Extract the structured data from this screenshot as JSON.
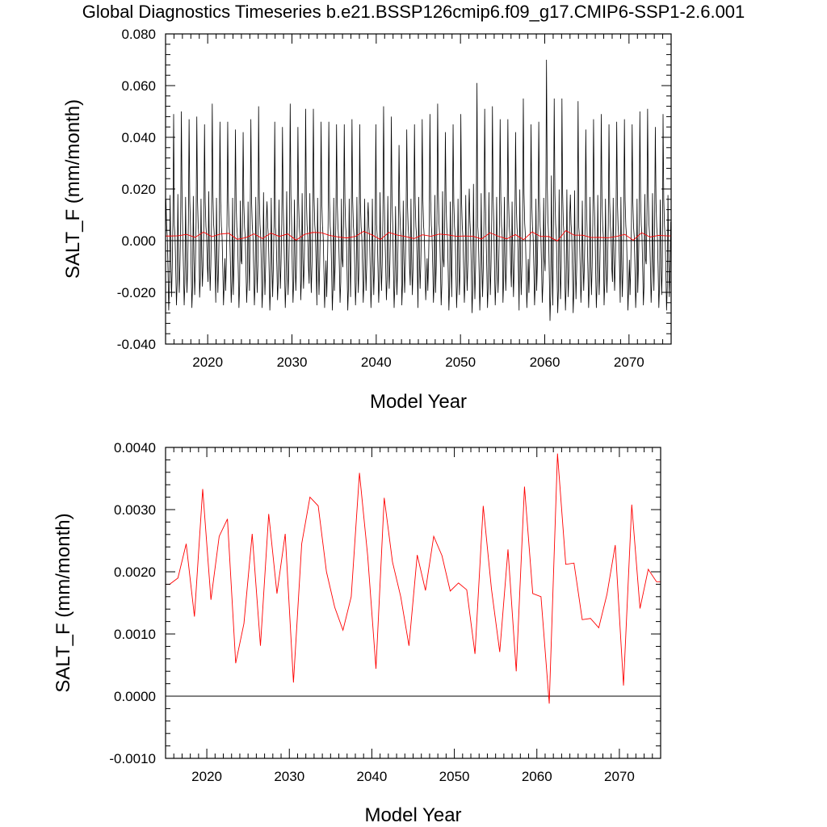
{
  "title": "Global Diagnostics Timeseries b.e21.BSSP126cmip6.f09_g17.CMIP6-SSP1-2.6.001",
  "chart_data": [
    {
      "type": "line",
      "xlabel": "Model Year",
      "ylabel": "SALT_F (mm/month)",
      "xlim": [
        2015,
        2075
      ],
      "ylim": [
        -0.04,
        0.08
      ],
      "x_ticks": [
        2020,
        2030,
        2040,
        2050,
        2060,
        2070
      ],
      "x_tick_labels": [
        "2020",
        "2030",
        "2040",
        "2050",
        "2060",
        "2070"
      ],
      "y_ticks": [
        -0.04,
        -0.02,
        0.0,
        0.02,
        0.04,
        0.06,
        0.08
      ],
      "y_tick_labels": [
        "-0.040",
        "-0.020",
        "0.000",
        "0.020",
        "0.040",
        "0.060",
        "0.080"
      ],
      "reference_line": 0,
      "series": [
        {
          "color": "#000000",
          "frequency": "monthly",
          "annual_peaks": [
            0.049,
            0.05,
            0.047,
            0.048,
            0.045,
            0.053,
            0.046,
            0.046,
            0.043,
            0.042,
            0.047,
            0.052,
            0.046,
            0.044,
            0.053,
            0.044,
            0.051,
            0.051,
            0.046,
            0.046,
            0.045,
            0.045,
            0.047,
            0.045,
            0.045,
            0.052,
            0.048,
            0.037,
            0.043,
            0.045,
            0.047,
            0.049,
            0.053,
            0.042,
            0.045,
            0.049,
            0.061,
            0.051,
            0.052,
            0.047,
            0.047,
            0.042,
            0.055,
            0.045,
            0.046,
            0.07,
            0.055,
            0.055,
            0.054,
            0.043,
            0.047,
            0.049,
            0.045,
            0.046,
            0.047,
            0.045,
            0.05,
            0.051,
            0.044,
            0.049
          ],
          "annual_troughs": [
            -0.027,
            -0.025,
            -0.025,
            -0.026,
            -0.022,
            -0.024,
            -0.025,
            -0.024,
            -0.026,
            -0.024,
            -0.025,
            -0.026,
            -0.027,
            -0.023,
            -0.026,
            -0.024,
            -0.023,
            -0.025,
            -0.026,
            -0.027,
            -0.024,
            -0.027,
            -0.025,
            -0.024,
            -0.026,
            -0.024,
            -0.023,
            -0.026,
            -0.025,
            -0.026,
            -0.023,
            -0.024,
            -0.025,
            -0.027,
            -0.026,
            -0.024,
            -0.028,
            -0.027,
            -0.026,
            -0.025,
            -0.024,
            -0.027,
            -0.026,
            -0.025,
            -0.024,
            -0.031,
            -0.028,
            -0.027,
            -0.028,
            -0.024,
            -0.026,
            -0.026,
            -0.025,
            -0.024,
            -0.027,
            -0.026,
            -0.025,
            -0.024,
            -0.026,
            -0.027
          ]
        },
        {
          "color": "#ff0000",
          "frequency": "annual",
          "x": [
            2015.5,
            2016.5,
            2017.5,
            2018.5,
            2019.5,
            2020.5,
            2021.5,
            2022.5,
            2023.5,
            2024.5,
            2025.5,
            2026.5,
            2027.5,
            2028.5,
            2029.5,
            2030.5,
            2031.5,
            2032.5,
            2033.5,
            2034.5,
            2035.5,
            2036.5,
            2037.5,
            2038.5,
            2039.5,
            2040.5,
            2041.5,
            2042.5,
            2043.5,
            2044.5,
            2045.5,
            2046.5,
            2047.5,
            2048.5,
            2049.5,
            2050.5,
            2051.5,
            2052.5,
            2053.5,
            2054.5,
            2055.5,
            2056.5,
            2057.5,
            2058.5,
            2059.5,
            2060.5,
            2061.5,
            2062.5,
            2063.5,
            2064.5,
            2065.5,
            2066.5,
            2067.5,
            2068.5,
            2069.5,
            2070.5,
            2071.5,
            2072.5,
            2073.5,
            2074.5
          ],
          "values": [
            0.0018,
            0.0019,
            0.00245,
            0.00128,
            0.00333,
            0.00155,
            0.00257,
            0.00285,
            0.00053,
            0.00117,
            0.00261,
            0.00081,
            0.00293,
            0.00165,
            0.00261,
            0.00022,
            0.00245,
            0.0032,
            0.00306,
            0.002,
            0.00143,
            0.00106,
            0.0016,
            0.00359,
            0.00225,
            0.00044,
            0.00319,
            0.00216,
            0.0016,
            0.00081,
            0.00227,
            0.0017,
            0.00257,
            0.00226,
            0.00169,
            0.00182,
            0.00171,
            0.00068,
            0.00306,
            0.00172,
            0.00071,
            0.00236,
            0.0004,
            0.00337,
            0.00165,
            0.0016,
            -0.00012,
            0.0039,
            0.00212,
            0.00214,
            0.00123,
            0.00125,
            0.0011,
            0.00164,
            0.00243,
            0.00017,
            0.00308,
            0.00141,
            0.00204,
            0.00184
          ]
        }
      ]
    },
    {
      "type": "line",
      "xlabel": "Model Year",
      "ylabel": "SALT_F (mm/month)",
      "xlim": [
        2015,
        2075
      ],
      "ylim": [
        -0.001,
        0.004
      ],
      "x_ticks": [
        2020,
        2030,
        2040,
        2050,
        2060,
        2070
      ],
      "x_tick_labels": [
        "2020",
        "2030",
        "2040",
        "2050",
        "2060",
        "2070"
      ],
      "y_ticks": [
        -0.001,
        0.0,
        0.001,
        0.002,
        0.003,
        0.004
      ],
      "y_tick_labels": [
        "-0.0010",
        "0.0000",
        "0.0010",
        "0.0020",
        "0.0030",
        "0.0040"
      ],
      "reference_line": 0,
      "series": [
        {
          "color": "#ff0000",
          "frequency": "annual",
          "x": [
            2015.5,
            2016.5,
            2017.5,
            2018.5,
            2019.5,
            2020.5,
            2021.5,
            2022.5,
            2023.5,
            2024.5,
            2025.5,
            2026.5,
            2027.5,
            2028.5,
            2029.5,
            2030.5,
            2031.5,
            2032.5,
            2033.5,
            2034.5,
            2035.5,
            2036.5,
            2037.5,
            2038.5,
            2039.5,
            2040.5,
            2041.5,
            2042.5,
            2043.5,
            2044.5,
            2045.5,
            2046.5,
            2047.5,
            2048.5,
            2049.5,
            2050.5,
            2051.5,
            2052.5,
            2053.5,
            2054.5,
            2055.5,
            2056.5,
            2057.5,
            2058.5,
            2059.5,
            2060.5,
            2061.5,
            2062.5,
            2063.5,
            2064.5,
            2065.5,
            2066.5,
            2067.5,
            2068.5,
            2069.5,
            2070.5,
            2071.5,
            2072.5,
            2073.5,
            2074.5
          ],
          "values": [
            0.0018,
            0.0019,
            0.00245,
            0.00128,
            0.00333,
            0.00155,
            0.00257,
            0.00285,
            0.00053,
            0.00117,
            0.00261,
            0.00081,
            0.00293,
            0.00165,
            0.00261,
            0.00022,
            0.00245,
            0.0032,
            0.00306,
            0.002,
            0.00143,
            0.00106,
            0.0016,
            0.00359,
            0.00225,
            0.00044,
            0.00319,
            0.00216,
            0.0016,
            0.00081,
            0.00227,
            0.0017,
            0.00257,
            0.00226,
            0.00169,
            0.00182,
            0.00171,
            0.00068,
            0.00306,
            0.00172,
            0.00071,
            0.00236,
            0.0004,
            0.00337,
            0.00165,
            0.0016,
            -0.00012,
            0.0039,
            0.00212,
            0.00214,
            0.00123,
            0.00125,
            0.0011,
            0.00164,
            0.00243,
            0.00017,
            0.00308,
            0.00141,
            0.00204,
            0.00184
          ]
        }
      ]
    }
  ]
}
